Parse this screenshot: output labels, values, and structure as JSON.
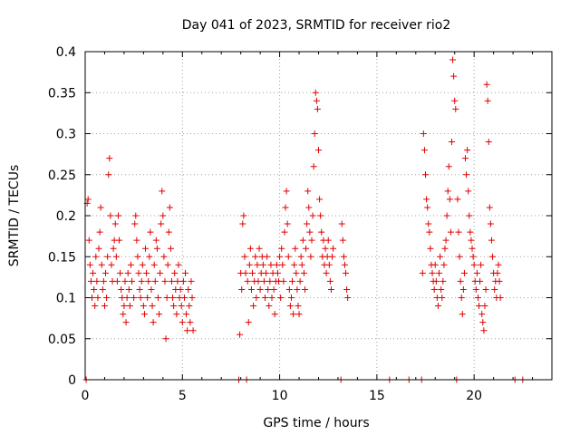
{
  "chart_data": {
    "type": "scatter",
    "title": "Day 041 of 2023, SRMTID for receiver rio2",
    "xlabel": "GPS time / hours",
    "ylabel": "SRMTID / TECUs",
    "xlim": [
      0,
      24
    ],
    "ylim": [
      0,
      0.4
    ],
    "x_ticks": [
      0,
      5,
      10,
      15,
      20
    ],
    "x_tick_labels": [
      "0",
      "5",
      "10",
      "15",
      "20"
    ],
    "y_ticks": [
      0,
      0.05,
      0.1,
      0.15,
      0.2,
      0.25,
      0.3,
      0.35,
      0.4
    ],
    "y_tick_labels": [
      "0",
      "0.05",
      "0.1",
      "0.15",
      "0.2",
      "0.25",
      "0.3",
      "0.35",
      "0.4"
    ],
    "grid": true,
    "marker": "+",
    "color": "#e00000",
    "series": [
      {
        "name": "SRMTID",
        "points": [
          [
            0.05,
            0.0
          ],
          [
            0.1,
            0.215
          ],
          [
            0.15,
            0.22
          ],
          [
            0.2,
            0.17
          ],
          [
            0.25,
            0.14
          ],
          [
            0.3,
            0.12
          ],
          [
            0.35,
            0.1
          ],
          [
            0.4,
            0.13
          ],
          [
            0.45,
            0.11
          ],
          [
            0.5,
            0.09
          ],
          [
            0.55,
            0.15
          ],
          [
            0.6,
            0.12
          ],
          [
            0.65,
            0.1
          ],
          [
            0.7,
            0.16
          ],
          [
            0.75,
            0.18
          ],
          [
            0.8,
            0.21
          ],
          [
            0.85,
            0.14
          ],
          [
            0.9,
            0.11
          ],
          [
            0.95,
            0.12
          ],
          [
            1.0,
            0.09
          ],
          [
            1.05,
            0.13
          ],
          [
            1.1,
            0.1
          ],
          [
            1.15,
            0.15
          ],
          [
            1.2,
            0.25
          ],
          [
            1.25,
            0.27
          ],
          [
            1.3,
            0.2
          ],
          [
            1.35,
            0.14
          ],
          [
            1.4,
            0.12
          ],
          [
            1.45,
            0.16
          ],
          [
            1.5,
            0.17
          ],
          [
            1.55,
            0.19
          ],
          [
            1.6,
            0.15
          ],
          [
            1.65,
            0.12
          ],
          [
            1.7,
            0.2
          ],
          [
            1.75,
            0.17
          ],
          [
            1.8,
            0.13
          ],
          [
            1.85,
            0.11
          ],
          [
            1.9,
            0.1
          ],
          [
            1.95,
            0.08
          ],
          [
            2.0,
            0.09
          ],
          [
            2.05,
            0.12
          ],
          [
            2.1,
            0.07
          ],
          [
            2.15,
            0.1
          ],
          [
            2.2,
            0.13
          ],
          [
            2.25,
            0.11
          ],
          [
            2.3,
            0.09
          ],
          [
            2.35,
            0.14
          ],
          [
            2.4,
            0.12
          ],
          [
            2.5,
            0.1
          ],
          [
            2.55,
            0.19
          ],
          [
            2.6,
            0.2
          ],
          [
            2.65,
            0.17
          ],
          [
            2.7,
            0.15
          ],
          [
            2.75,
            0.13
          ],
          [
            2.8,
            0.11
          ],
          [
            2.85,
            0.1
          ],
          [
            2.9,
            0.12
          ],
          [
            2.95,
            0.14
          ],
          [
            3.0,
            0.09
          ],
          [
            3.05,
            0.08
          ],
          [
            3.1,
            0.16
          ],
          [
            3.15,
            0.13
          ],
          [
            3.2,
            0.1
          ],
          [
            3.25,
            0.12
          ],
          [
            3.3,
            0.15
          ],
          [
            3.35,
            0.18
          ],
          [
            3.4,
            0.11
          ],
          [
            3.45,
            0.09
          ],
          [
            3.5,
            0.07
          ],
          [
            3.55,
            0.14
          ],
          [
            3.6,
            0.12
          ],
          [
            3.65,
            0.17
          ],
          [
            3.7,
            0.16
          ],
          [
            3.75,
            0.1
          ],
          [
            3.8,
            0.08
          ],
          [
            3.85,
            0.13
          ],
          [
            3.9,
            0.19
          ],
          [
            3.95,
            0.23
          ],
          [
            4.0,
            0.2
          ],
          [
            4.05,
            0.15
          ],
          [
            4.1,
            0.12
          ],
          [
            4.15,
            0.05
          ],
          [
            4.2,
            0.1
          ],
          [
            4.25,
            0.14
          ],
          [
            4.3,
            0.18
          ],
          [
            4.35,
            0.21
          ],
          [
            4.4,
            0.16
          ],
          [
            4.45,
            0.12
          ],
          [
            4.5,
            0.1
          ],
          [
            4.55,
            0.09
          ],
          [
            4.6,
            0.13
          ],
          [
            4.65,
            0.11
          ],
          [
            4.7,
            0.08
          ],
          [
            4.75,
            0.12
          ],
          [
            4.8,
            0.14
          ],
          [
            4.85,
            0.1
          ],
          [
            4.9,
            0.11
          ],
          [
            4.95,
            0.09
          ],
          [
            5.0,
            0.07
          ],
          [
            5.05,
            0.12
          ],
          [
            5.1,
            0.1
          ],
          [
            5.15,
            0.13
          ],
          [
            5.2,
            0.08
          ],
          [
            5.25,
            0.06
          ],
          [
            5.3,
            0.11
          ],
          [
            5.35,
            0.09
          ],
          [
            5.4,
            0.07
          ],
          [
            5.45,
            0.12
          ],
          [
            5.5,
            0.1
          ],
          [
            5.55,
            0.06
          ],
          [
            7.9,
            0.0
          ],
          [
            7.95,
            0.055
          ],
          [
            8.0,
            0.13
          ],
          [
            8.05,
            0.11
          ],
          [
            8.1,
            0.19
          ],
          [
            8.15,
            0.2
          ],
          [
            8.2,
            0.15
          ],
          [
            8.25,
            0.13
          ],
          [
            8.3,
            0.0
          ],
          [
            8.35,
            0.12
          ],
          [
            8.4,
            0.07
          ],
          [
            8.45,
            0.14
          ],
          [
            8.5,
            0.16
          ],
          [
            8.55,
            0.11
          ],
          [
            8.6,
            0.13
          ],
          [
            8.65,
            0.09
          ],
          [
            8.7,
            0.12
          ],
          [
            8.75,
            0.15
          ],
          [
            8.8,
            0.1
          ],
          [
            8.85,
            0.14
          ],
          [
            8.9,
            0.12
          ],
          [
            8.95,
            0.16
          ],
          [
            9.0,
            0.11
          ],
          [
            9.05,
            0.13
          ],
          [
            9.1,
            0.15
          ],
          [
            9.15,
            0.14
          ],
          [
            9.2,
            0.12
          ],
          [
            9.25,
            0.1
          ],
          [
            9.3,
            0.13
          ],
          [
            9.35,
            0.15
          ],
          [
            9.4,
            0.11
          ],
          [
            9.45,
            0.09
          ],
          [
            9.5,
            0.12
          ],
          [
            9.55,
            0.14
          ],
          [
            9.6,
            0.1
          ],
          [
            9.65,
            0.13
          ],
          [
            9.7,
            0.11
          ],
          [
            9.75,
            0.08
          ],
          [
            9.8,
            0.12
          ],
          [
            9.85,
            0.14
          ],
          [
            9.9,
            0.13
          ],
          [
            9.95,
            0.12
          ],
          [
            10.0,
            0.15
          ],
          [
            10.05,
            0.1
          ],
          [
            10.1,
            0.16
          ],
          [
            10.15,
            0.14
          ],
          [
            10.2,
            0.12
          ],
          [
            10.25,
            0.18
          ],
          [
            10.3,
            0.21
          ],
          [
            10.35,
            0.23
          ],
          [
            10.4,
            0.19
          ],
          [
            10.45,
            0.15
          ],
          [
            10.5,
            0.11
          ],
          [
            10.55,
            0.09
          ],
          [
            10.6,
            0.1
          ],
          [
            10.65,
            0.12
          ],
          [
            10.7,
            0.08
          ],
          [
            10.75,
            0.14
          ],
          [
            10.8,
            0.16
          ],
          [
            10.85,
            0.13
          ],
          [
            10.9,
            0.11
          ],
          [
            10.95,
            0.09
          ],
          [
            11.0,
            0.08
          ],
          [
            11.05,
            0.12
          ],
          [
            11.1,
            0.15
          ],
          [
            11.15,
            0.14
          ],
          [
            11.2,
            0.17
          ],
          [
            11.25,
            0.13
          ],
          [
            11.3,
            0.11
          ],
          [
            11.35,
            0.16
          ],
          [
            11.4,
            0.19
          ],
          [
            11.45,
            0.23
          ],
          [
            11.5,
            0.21
          ],
          [
            11.55,
            0.18
          ],
          [
            11.6,
            0.15
          ],
          [
            11.65,
            0.17
          ],
          [
            11.7,
            0.2
          ],
          [
            11.75,
            0.26
          ],
          [
            11.8,
            0.3
          ],
          [
            11.85,
            0.35
          ],
          [
            11.9,
            0.34
          ],
          [
            11.95,
            0.33
          ],
          [
            12.0,
            0.28
          ],
          [
            12.05,
            0.22
          ],
          [
            12.1,
            0.2
          ],
          [
            12.15,
            0.18
          ],
          [
            12.2,
            0.15
          ],
          [
            12.25,
            0.17
          ],
          [
            12.3,
            0.14
          ],
          [
            12.35,
            0.16
          ],
          [
            12.4,
            0.13
          ],
          [
            12.45,
            0.15
          ],
          [
            12.5,
            0.17
          ],
          [
            12.55,
            0.14
          ],
          [
            12.6,
            0.12
          ],
          [
            12.65,
            0.11
          ],
          [
            12.7,
            0.15
          ],
          [
            12.75,
            0.16
          ],
          [
            13.15,
            0.0
          ],
          [
            13.2,
            0.19
          ],
          [
            13.25,
            0.17
          ],
          [
            13.3,
            0.15
          ],
          [
            13.35,
            0.14
          ],
          [
            13.4,
            0.13
          ],
          [
            13.45,
            0.11
          ],
          [
            13.5,
            0.1
          ],
          [
            15.65,
            0.0
          ],
          [
            16.65,
            0.0
          ],
          [
            17.3,
            0.0
          ],
          [
            17.35,
            0.13
          ],
          [
            17.4,
            0.3
          ],
          [
            17.45,
            0.28
          ],
          [
            17.5,
            0.25
          ],
          [
            17.55,
            0.22
          ],
          [
            17.6,
            0.21
          ],
          [
            17.65,
            0.19
          ],
          [
            17.7,
            0.18
          ],
          [
            17.75,
            0.16
          ],
          [
            17.8,
            0.14
          ],
          [
            17.85,
            0.13
          ],
          [
            17.9,
            0.12
          ],
          [
            17.95,
            0.11
          ],
          [
            18.0,
            0.14
          ],
          [
            18.05,
            0.12
          ],
          [
            18.1,
            0.1
          ],
          [
            18.15,
            0.09
          ],
          [
            18.2,
            0.13
          ],
          [
            18.25,
            0.15
          ],
          [
            18.3,
            0.11
          ],
          [
            18.35,
            0.1
          ],
          [
            18.4,
            0.12
          ],
          [
            18.45,
            0.14
          ],
          [
            18.5,
            0.16
          ],
          [
            18.55,
            0.17
          ],
          [
            18.6,
            0.2
          ],
          [
            18.65,
            0.23
          ],
          [
            18.7,
            0.26
          ],
          [
            18.75,
            0.22
          ],
          [
            18.8,
            0.18
          ],
          [
            18.85,
            0.29
          ],
          [
            18.9,
            0.39
          ],
          [
            18.95,
            0.37
          ],
          [
            19.0,
            0.34
          ],
          [
            19.05,
            0.33
          ],
          [
            19.1,
            0.0
          ],
          [
            19.15,
            0.22
          ],
          [
            19.2,
            0.18
          ],
          [
            19.25,
            0.15
          ],
          [
            19.3,
            0.12
          ],
          [
            19.35,
            0.1
          ],
          [
            19.4,
            0.08
          ],
          [
            19.45,
            0.11
          ],
          [
            19.5,
            0.13
          ],
          [
            19.55,
            0.27
          ],
          [
            19.6,
            0.25
          ],
          [
            19.65,
            0.28
          ],
          [
            19.7,
            0.23
          ],
          [
            19.75,
            0.2
          ],
          [
            19.8,
            0.18
          ],
          [
            19.85,
            0.17
          ],
          [
            19.9,
            0.16
          ],
          [
            19.95,
            0.15
          ],
          [
            20.0,
            0.14
          ],
          [
            20.05,
            0.12
          ],
          [
            20.1,
            0.11
          ],
          [
            20.15,
            0.13
          ],
          [
            20.2,
            0.1
          ],
          [
            20.25,
            0.09
          ],
          [
            20.3,
            0.12
          ],
          [
            20.35,
            0.14
          ],
          [
            20.4,
            0.08
          ],
          [
            20.45,
            0.07
          ],
          [
            20.5,
            0.06
          ],
          [
            20.55,
            0.09
          ],
          [
            20.6,
            0.11
          ],
          [
            20.65,
            0.36
          ],
          [
            20.7,
            0.34
          ],
          [
            20.75,
            0.29
          ],
          [
            20.8,
            0.21
          ],
          [
            20.85,
            0.19
          ],
          [
            20.9,
            0.17
          ],
          [
            20.95,
            0.15
          ],
          [
            21.0,
            0.13
          ],
          [
            21.05,
            0.11
          ],
          [
            21.1,
            0.12
          ],
          [
            21.15,
            0.1
          ],
          [
            21.2,
            0.13
          ],
          [
            21.25,
            0.14
          ],
          [
            21.3,
            0.12
          ],
          [
            21.35,
            0.1
          ],
          [
            22.1,
            0.0
          ],
          [
            22.5,
            0.0
          ]
        ]
      }
    ]
  }
}
